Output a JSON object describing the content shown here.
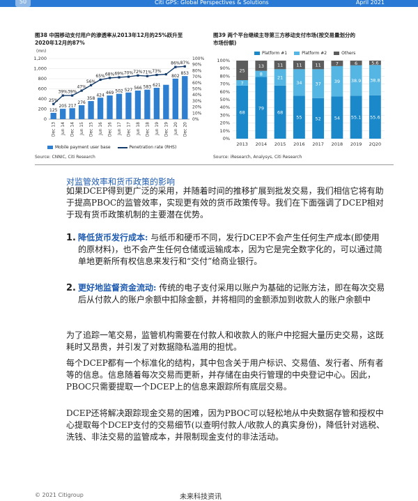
{
  "header": {
    "page_number": "50",
    "title": "Citi GPS: Global Perspectives & Solutions",
    "date": "April 2021"
  },
  "figure38": {
    "title_line1": "图38 中国移动支付用户的渗透率从2013年12月的25%跃升至",
    "title_line2": "2020年12月的87%",
    "units": "(mn)",
    "legend_bar": "Mobile payment user base",
    "legend_line": "Penetration rate (RHS)",
    "source": "Source: CNNIC, Citi Research"
  },
  "figure39": {
    "title_line1": "图39 两个平台继续主导第三方移动支付市场(按交易量划分的",
    "title_line2": "市场份额)",
    "legend": [
      "Platform #1",
      "Platform #2",
      "Others"
    ],
    "source": "Source: iResearch, Analysys, Citi Research"
  },
  "chart_data": [
    {
      "type": "bar",
      "categories": [
        "Dec 13",
        "Jun 14",
        "Dec 14",
        "Jun 15",
        "Dec 15",
        "Jun 16",
        "Dec 16",
        "Jun 17",
        "Dec 17",
        "Jun 18",
        "Dec 18",
        "Jun 19",
        "Dec 19",
        "Jun 20",
        "Dec 20"
      ],
      "series": [
        {
          "name": "Mobile payment user base",
          "type": "bar",
          "axis": "left",
          "values": [
            125,
            205,
            217,
            276,
            358,
            424,
            469,
            502,
            527,
            566,
            583,
            621,
            680,
            802,
            853
          ],
          "labels": [
            "125",
            "205",
            "217",
            "276",
            "358",
            "424",
            "469",
            "502",
            "527",
            "566",
            "583",
            "621",
            "",
            "802",
            "853"
          ]
        },
        {
          "name": "Penetration rate (RHS)",
          "type": "line",
          "axis": "right",
          "values": [
            25,
            39,
            39,
            47,
            56,
            65,
            68,
            69,
            70,
            72,
            71,
            73,
            74,
            86,
            87
          ],
          "labels": [
            "25%",
            "39%",
            "39%",
            "47%",
            "56%",
            "65%",
            "68%",
            "69%",
            "70%",
            "72%",
            "71%",
            "73%",
            "",
            "86%",
            "87%"
          ]
        }
      ],
      "ylim": [
        0,
        1200
      ],
      "y_ticks": [
        "0",
        "200",
        "400",
        "600",
        "800",
        "1,000",
        "1,200"
      ],
      "y2lim": [
        0,
        100
      ],
      "y2_ticks": [
        "0%",
        "10%",
        "20%",
        "30%",
        "40%",
        "50%",
        "60%",
        "70%",
        "80%",
        "90%",
        "100%"
      ],
      "ylabel": "(mn)"
    },
    {
      "type": "bar",
      "stacked": true,
      "categories": [
        "2013",
        "2014",
        "2015",
        "2016",
        "2017",
        "2018",
        "2019",
        "2Q20"
      ],
      "series": [
        {
          "name": "Platform #1",
          "values": [
            68,
            79,
            68,
            55,
            52,
            54,
            55.1,
            55.6
          ],
          "labels": [
            "68",
            "79",
            "68",
            "55",
            "52",
            "54",
            "55.1",
            "55.6"
          ]
        },
        {
          "name": "Platform #2",
          "values": [
            7,
            8,
            21,
            34,
            37,
            39,
            38.9,
            38.8
          ],
          "labels": [
            "7",
            "8",
            "21",
            "34",
            "37",
            "39",
            "38.9",
            "38.8"
          ]
        },
        {
          "name": "Others",
          "values": [
            25,
            13,
            11,
            11,
            11,
            7,
            6,
            5.6
          ],
          "labels": [
            "25",
            "13",
            "11",
            "11",
            "11",
            "7",
            "6",
            "5.6"
          ]
        }
      ],
      "ylim": [
        0,
        100
      ],
      "y_ticks": [
        "0%",
        "10%",
        "20%",
        "30%",
        "40%",
        "50%",
        "60%",
        "70%",
        "80%",
        "90%",
        "100%"
      ],
      "legend_position": "top"
    }
  ],
  "body": {
    "section_title": "对监管效率和货币政策的影响",
    "intro": "如果DCEP得到更广泛的采用，并随着时间的推移扩展到批发交易，我们相信它将有助于提高PBOC的监管效率，实现更有效的货币政策传导。我们在下面强调了DCEP相对于现有货币政策机制的主要潜在优势。",
    "item1_num": "1.",
    "item1_title": "降低货币发行成本:",
    "item1_text": "与纸币和硬币不同，发行DCEP不会产生任何生产成本(即使用的原材料)，也不会产生任何仓储或运输成本，因为它是完全数字化的，可以通过简单地更新所有权信息来发行和“交付”给商业银行。",
    "item2_num": "2.",
    "item2_title": "更好地监督资金流动:",
    "item2_text": "传统的电子支付采用以账户为基础的记账方法，即在每次交易后从付款人的账户余额中扣除金额，并将相同的金额添加到收款人的账户余额中",
    "para3": "为了追踪一笔交易，监管机构需要在付款人和收款人的账户中挖掘大量历史交易，这既耗时又昂贵，并引发了对数据隐私滥用的担忧。",
    "para4": "每个DCEP都有一个标准化的结构，其中包含关于用户标识、交易值、发行者、所有者等的信息。信息随着每次交易而更新，并存储在由央行管理的中央登记中心。因此，PBOC只需要提取一个DCEP上的信息来跟踪所有底层交易。",
    "para5": "DCEP还将解决跟踪现金交易的困难，因为PBOC可以轻松地从中央数据存管和授权中心提取每个DCEP支付的交易细节(以查明付款人/收款人的真实身份)，降低针对逃税、洗钱、非法交易的监管成本，并限制现金支付的非法活动。"
  },
  "footer": {
    "left": "© 2021 Citigroup",
    "center": "未来科技资讯"
  },
  "colors": {
    "bar_blue": "#2f7fd0",
    "line_navy": "#123a6b",
    "platform1": "#1b89c9",
    "platform2": "#55b6e3",
    "others": "#5c5c5c",
    "accent": "#1e5bb0"
  }
}
